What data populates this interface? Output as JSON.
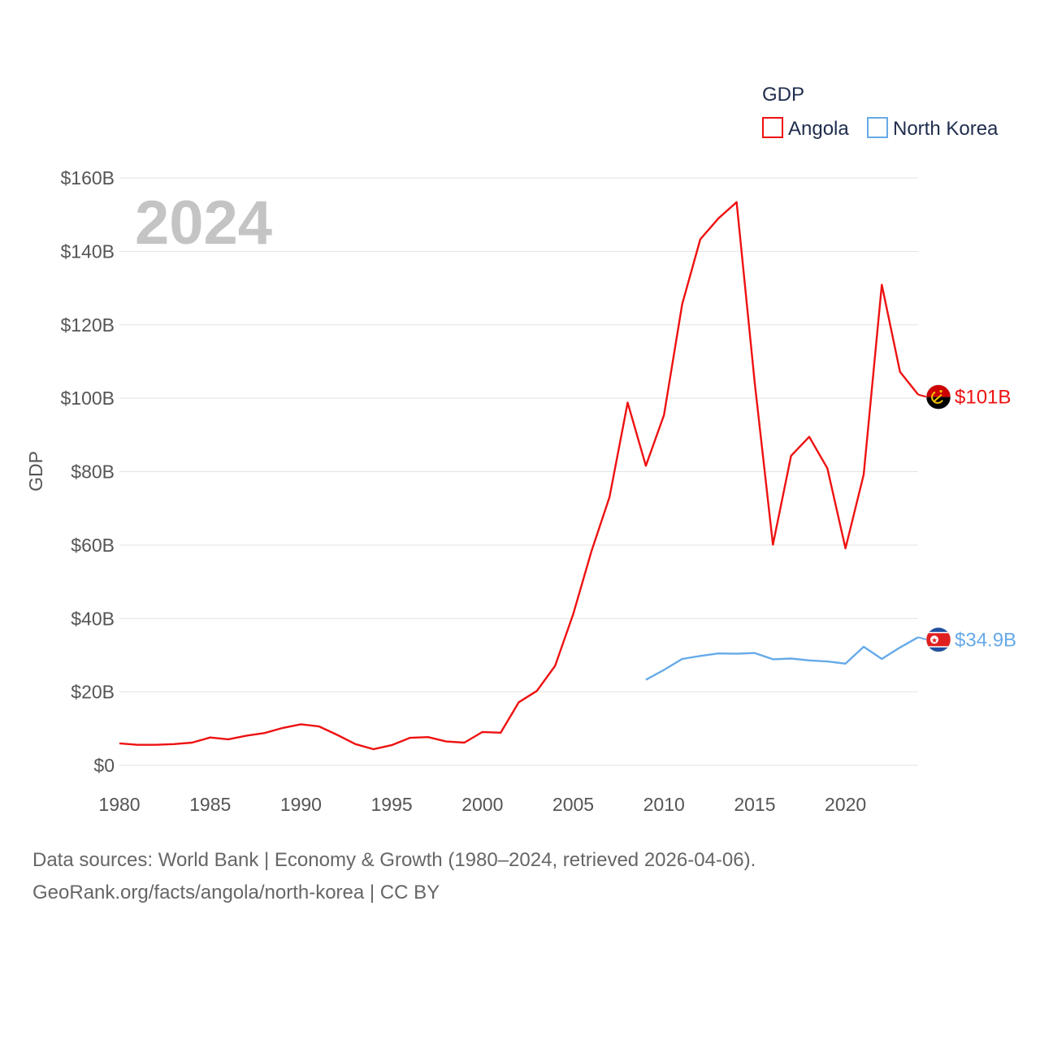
{
  "chart_data": {
    "type": "line",
    "ylabel": "GDP",
    "year_watermark": "2024",
    "legend": {
      "title": "GDP",
      "placement": "top-right"
    },
    "x_ticks": [
      1980,
      1985,
      1990,
      1995,
      2000,
      2005,
      2010,
      2015,
      2020
    ],
    "y_ticks": [
      0,
      20,
      40,
      60,
      80,
      100,
      120,
      140,
      160
    ],
    "y_tick_labels": [
      "$0",
      "$20B",
      "$40B",
      "$60B",
      "$80B",
      "$100B",
      "$120B",
      "$140B",
      "$160B"
    ],
    "xlim": [
      1980,
      2024
    ],
    "ylim": [
      0,
      160
    ],
    "y_units": "billion USD",
    "series": [
      {
        "name": "Angola",
        "color": "#ee1111",
        "end_label": "$101B",
        "flag_icon": "angola-flag-icon",
        "x": [
          1980,
          1981,
          1982,
          1983,
          1984,
          1985,
          1986,
          1987,
          1988,
          1989,
          1990,
          1991,
          1992,
          1993,
          1994,
          1995,
          1996,
          1997,
          1998,
          1999,
          2000,
          2001,
          2002,
          2003,
          2004,
          2005,
          2006,
          2007,
          2008,
          2009,
          2010,
          2011,
          2012,
          2013,
          2014,
          2015,
          2016,
          2017,
          2018,
          2019,
          2020,
          2021,
          2022,
          2023,
          2024
        ],
        "values": [
          6.0,
          5.6,
          5.6,
          5.8,
          6.2,
          7.6,
          7.1,
          8.1,
          8.8,
          10.2,
          11.2,
          10.6,
          8.3,
          5.8,
          4.4,
          5.5,
          7.5,
          7.7,
          6.5,
          6.2,
          9.1,
          8.9,
          17.2,
          20.3,
          27.1,
          41.2,
          58.3,
          73.1,
          98.8,
          81.6,
          95.4,
          125.6,
          143.3,
          149.0,
          153.4,
          104.2,
          60.1,
          84.3,
          89.5,
          80.9,
          59.1,
          79.2,
          130.9,
          107.2,
          101.0
        ]
      },
      {
        "name": "North Korea",
        "color": "#66aae8",
        "end_label": "$34.9B",
        "flag_icon": "north-korea-flag-icon",
        "x": [
          2009,
          2010,
          2011,
          2012,
          2013,
          2014,
          2015,
          2016,
          2017,
          2018,
          2019,
          2020,
          2021,
          2022,
          2023,
          2024
        ],
        "values": [
          23.3,
          26.0,
          29.0,
          29.8,
          30.5,
          30.4,
          30.6,
          28.9,
          29.1,
          28.6,
          28.3,
          27.7,
          32.3,
          29.0,
          32.1,
          34.9
        ]
      }
    ]
  },
  "footer": {
    "line1": "Data sources: World Bank | Economy & Growth (1980–2024, retrieved 2026-04-06).",
    "line2": "GeoRank.org/facts/angola/north-korea | CC BY"
  }
}
